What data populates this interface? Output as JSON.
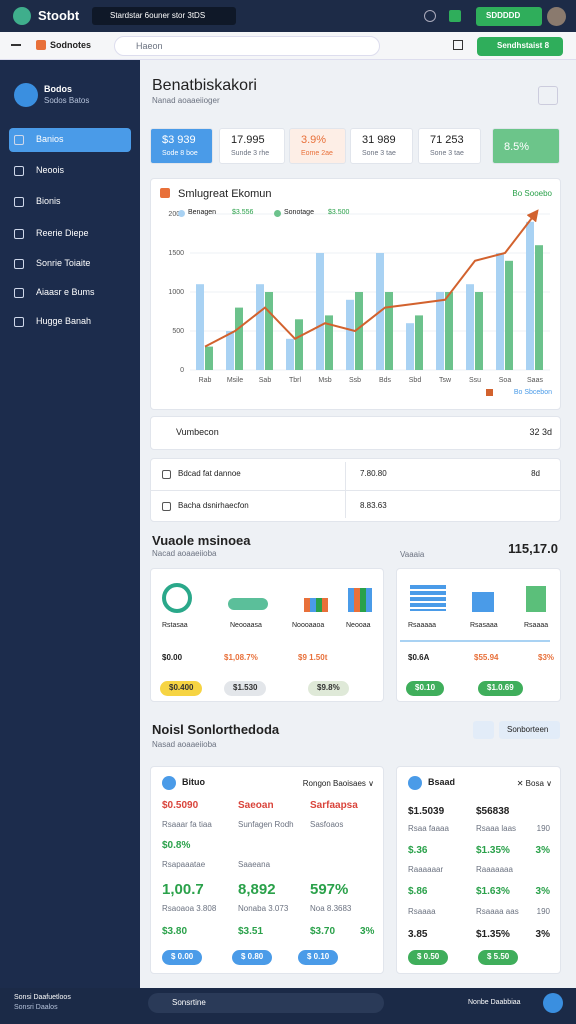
{
  "topbar": {
    "brand": "Stoobt",
    "search": "Stardstar 6ouner stor 3tDS",
    "button": "SDDDDD"
  },
  "toolbar": {
    "tab": "Sodnotes",
    "address": "Haeon",
    "button": "Sendhstaist 8"
  },
  "sidebar": {
    "profile": {
      "name": "Bodos",
      "sub": "Sodos Batos"
    },
    "nav": [
      "Banios",
      "Neoois",
      "Bionis",
      "Reerie Diepe",
      "Sonrie Toiaite",
      "Aiaasr e Bums",
      "Hugge Banah"
    ],
    "active": 0
  },
  "footer": {
    "left": [
      "Sonsi Daafuetloos",
      "Sonsri Daalos"
    ],
    "search": "Sonsrtine",
    "right": "Nonbe Daabbiaa"
  },
  "header": {
    "title": "Benatbiskakori",
    "subtitle": "Nanad aoaaeiioger"
  },
  "kpis": [
    {
      "value": "$3 939",
      "label": "Sode 8 boe",
      "tone": "blue"
    },
    {
      "value": "17.995",
      "label": "Sunde 3 rhe",
      "tone": "white"
    },
    {
      "value": "3.9%",
      "label": "Eome 2ae",
      "tone": "orange"
    },
    {
      "value": "31 989",
      "label": "Sone 3 tae",
      "tone": "white"
    },
    {
      "value": "71 253",
      "label": "Sone 3 tae",
      "tone": "white"
    },
    {
      "value": "8.5%",
      "tone": "green"
    }
  ],
  "chart_data": {
    "type": "bar",
    "title": "Smlugreat Ekomun",
    "note": "Bo Sooebo",
    "categories": [
      "Rab",
      "Msile",
      "Sab",
      "Tbrl",
      "Msb",
      "Ssb",
      "Bds",
      "Sbd",
      "Tsw",
      "Ssu",
      "Soa",
      "Saas"
    ],
    "series": [
      {
        "name": "Benagen",
        "legend_value": "$3.556",
        "color": "#a9d2f3",
        "values": [
          1100,
          500,
          1100,
          400,
          1500,
          900,
          1500,
          600,
          1000,
          1100,
          1500,
          1900
        ]
      },
      {
        "name": "Sonotage",
        "legend_value": "$3.500",
        "color": "#6cc28c",
        "values": [
          300,
          800,
          1000,
          650,
          700,
          1000,
          1000,
          700,
          1000,
          1000,
          1400,
          1600
        ]
      },
      {
        "name": "Bo Sbcebon",
        "type": "line",
        "color": "#d2622e",
        "values": [
          300,
          500,
          800,
          400,
          600,
          500,
          800,
          850,
          900,
          1400,
          1500,
          2000
        ]
      }
    ],
    "ylim": [
      0,
      2000
    ],
    "yticks": [
      0,
      500,
      1000,
      1500,
      2000
    ],
    "grid": true
  },
  "summary": {
    "label": "Vumbecon",
    "value": "32 3d"
  },
  "table": {
    "rows": [
      [
        "Bdcad fat dannoe",
        "7.80.80",
        "8d"
      ],
      [
        "Bacha dsnirhaecfon",
        "8.83.63"
      ]
    ]
  },
  "section2": {
    "title": "Vuaole msinoea",
    "subtitle": "Nacad aoaaeiioba",
    "side": "Vaaaia",
    "total": "115,17.0",
    "cards": [
      {
        "labels": [
          "Rstasaa",
          "Neooaasa",
          "Noooaaoa",
          "Neooaa"
        ],
        "values": [
          "$0.00",
          "$1,08.7%",
          "$9 1.50t"
        ],
        "pills": [
          "$0.400",
          "$1.530",
          "$9.8%"
        ]
      },
      {
        "labels": [
          "Rsaaaaa",
          "Rsasaaa",
          "Rsaaaa"
        ],
        "values": [
          "$0.6A",
          "$55.94",
          "$3%"
        ],
        "pills": [
          "$0.10",
          "$1.0.69"
        ]
      }
    ]
  },
  "section3": {
    "title": "Noisl Sonlorthedoda",
    "subtitle": "Nasad aoaaeiioba",
    "button": "Sonborteen",
    "cards": [
      {
        "title": "Bituo",
        "menu": "Rongon Baoisaes ∨",
        "rows": [
          {
            "tone": "red",
            "cells": [
              "$0.5090",
              "Saeoan",
              "Sarfaapsa"
            ]
          },
          {
            "tone": "muted",
            "cells": [
              "Rsaaar fa tiaa",
              "Sunfagen Rodh",
              "Sasfoaos"
            ]
          },
          {
            "tone": "green",
            "cells": [
              "$0.8%"
            ]
          },
          {
            "tone": "muted",
            "cells": [
              "Rsapaaatae",
              "Saaeana"
            ]
          },
          {
            "tone": "big",
            "cells": [
              "1,00.7",
              "8,892",
              "597%"
            ]
          },
          {
            "tone": "muted",
            "cells": [
              "Rsaoaoa 3.808",
              "Nonaba 3.073",
              "Noa 8.3683"
            ]
          },
          {
            "tone": "green",
            "cells": [
              "$3.80",
              "$3.51",
              "$3.70",
              "3%"
            ]
          }
        ],
        "pills": [
          "$ 0.00",
          "$ 0.80",
          "$ 0.10"
        ]
      },
      {
        "title": "Bsaad",
        "menu": "✕ Bosa ∨",
        "rows": [
          {
            "tone": "dark",
            "cells": [
              "$1.5039",
              "$56838"
            ]
          },
          {
            "tone": "muted",
            "cells": [
              "Rsaa faaaa",
              "Rsaaa laas",
              "190"
            ]
          },
          {
            "tone": "green",
            "cells": [
              "$.36",
              "$1.35%",
              "3%"
            ]
          },
          {
            "tone": "muted",
            "cells": [
              "Raaaaaar",
              "Raaaaaaa"
            ]
          },
          {
            "tone": "green",
            "cells": [
              "$.86",
              "$1.63%",
              "3%"
            ]
          },
          {
            "tone": "muted",
            "cells": [
              "Rsaaaa",
              "Rsaaaa aas",
              "190"
            ]
          },
          {
            "tone": "dark",
            "cells": [
              "3.85",
              "$1.35%",
              "3%"
            ]
          }
        ],
        "pills": [
          "$ 0.50",
          "$ 5.50"
        ]
      }
    ]
  }
}
